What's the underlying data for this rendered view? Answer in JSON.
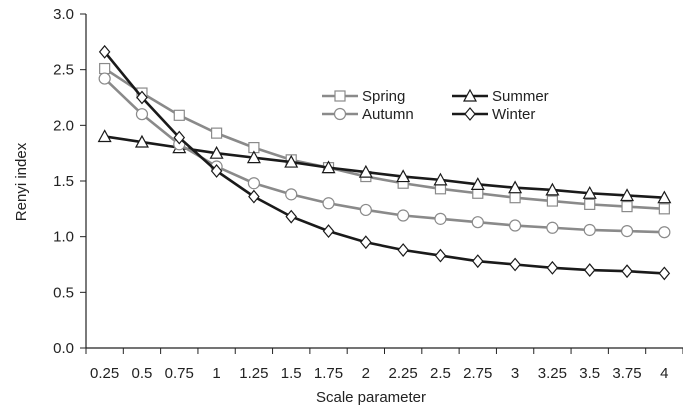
{
  "chart_data": {
    "type": "line",
    "title": "",
    "xlabel": "Scale parameter",
    "ylabel": "Renyi index",
    "x": [
      0.25,
      0.5,
      0.75,
      1,
      1.25,
      1.5,
      1.75,
      2,
      2.25,
      2.5,
      2.75,
      3,
      3.25,
      3.5,
      3.75,
      4
    ],
    "x_tick_labels": [
      "0.25",
      "0.5",
      "0.75",
      "1",
      "1.25",
      "1.5",
      "1.75",
      "2",
      "2.25",
      "2.5",
      "2.75",
      "3",
      "3.25",
      "3.5",
      "3.75",
      "4"
    ],
    "ylim": [
      0,
      3
    ],
    "y_ticks": [
      0,
      0.5,
      1,
      1.5,
      2,
      2.5,
      3
    ],
    "y_tick_labels": [
      "0.0",
      "0.5",
      "1.0",
      "1.5",
      "2.0",
      "2.5",
      "3.0"
    ],
    "grid": false,
    "legend_position": "top-right",
    "series": [
      {
        "name": "Spring",
        "marker": "square",
        "color": "#8a8a8a",
        "values": [
          2.51,
          2.29,
          2.09,
          1.93,
          1.8,
          1.69,
          1.62,
          1.54,
          1.48,
          1.43,
          1.39,
          1.35,
          1.32,
          1.29,
          1.27,
          1.25
        ]
      },
      {
        "name": "Summer",
        "marker": "triangle",
        "color": "#1a1a1a",
        "values": [
          1.9,
          1.85,
          1.8,
          1.75,
          1.71,
          1.67,
          1.62,
          1.58,
          1.54,
          1.51,
          1.47,
          1.44,
          1.42,
          1.39,
          1.37,
          1.35
        ]
      },
      {
        "name": "Autumn",
        "marker": "circle",
        "color": "#8a8a8a",
        "values": [
          2.42,
          2.1,
          1.83,
          1.63,
          1.48,
          1.38,
          1.3,
          1.24,
          1.19,
          1.16,
          1.13,
          1.1,
          1.08,
          1.06,
          1.05,
          1.04
        ]
      },
      {
        "name": "Winter",
        "marker": "diamond",
        "color": "#1a1a1a",
        "values": [
          2.66,
          2.25,
          1.89,
          1.59,
          1.36,
          1.18,
          1.05,
          0.95,
          0.88,
          0.83,
          0.78,
          0.75,
          0.72,
          0.7,
          0.69,
          0.67
        ]
      }
    ]
  }
}
